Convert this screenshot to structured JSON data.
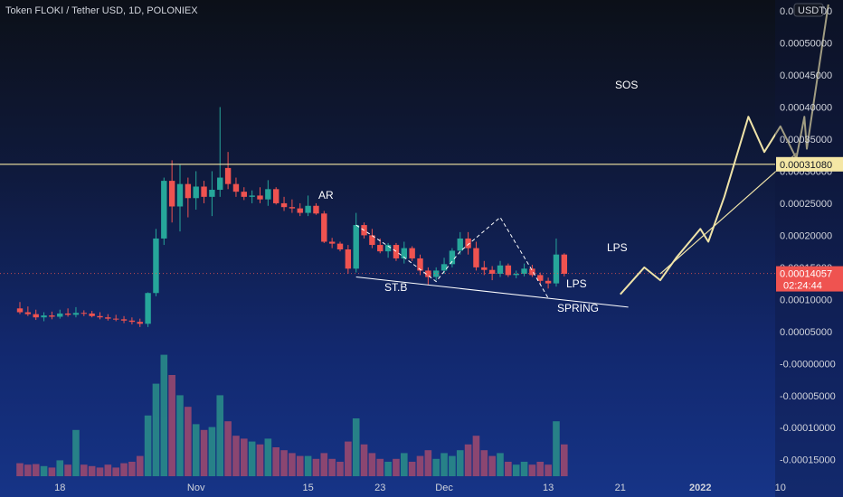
{
  "header": {
    "title": "Token FLOKI / Tether USD, 1D, POLONIEX"
  },
  "price_axis": {
    "currency_badge": "USDT",
    "ticks": [
      "0.00055000",
      "0.00050000",
      "0.00045000",
      "0.00040000",
      "0.00035000",
      "0.00030000",
      "0.00025000",
      "0.00020000",
      "0.00015000",
      "0.00010000",
      "0.00005000",
      "-0.00000000",
      "-0.00005000",
      "-0.00010000",
      "-0.00015000"
    ],
    "horizontal_line_label": "0.00031080",
    "last_price_label": "0.00014057",
    "countdown_label": "02:24:44"
  },
  "time_axis": {
    "ticks": [
      "18",
      "Nov",
      "15",
      "23",
      "Dec",
      "13",
      "21",
      "2022",
      "10"
    ]
  },
  "annotations": {
    "ar": "AR",
    "stb": "ST.B",
    "spring": "SPRING",
    "lps1": "LPS",
    "lps2": "LPS",
    "sos": "SOS"
  },
  "colors": {
    "up": "#26a69a",
    "down": "#ef5350",
    "hline": "#f5e7a5",
    "projection": "#efe3a8",
    "last_price_bg": "#ef5350"
  },
  "chart_data": {
    "type": "candlestick",
    "title": "Token FLOKI / Tether USD, 1D, POLONIEX",
    "y_range": [
      -0.00018,
      0.00055
    ],
    "candles": [
      {
        "o": 8.6e-05,
        "h": 9.6e-05,
        "l": 7.7e-05,
        "c": 8e-05,
        "v": 0.45
      },
      {
        "o": 8e-05,
        "h": 8.9e-05,
        "l": 7.4e-05,
        "c": 7.7e-05,
        "v": 0.4
      },
      {
        "o": 7.7e-05,
        "h": 8.4e-05,
        "l": 6.8e-05,
        "c": 7.2e-05,
        "v": 0.42
      },
      {
        "o": 7.2e-05,
        "h": 8e-05,
        "l": 6.6e-05,
        "c": 7.5e-05,
        "v": 0.35
      },
      {
        "o": 7.5e-05,
        "h": 8.1e-05,
        "l": 6.9e-05,
        "c": 7.3e-05,
        "v": 0.3
      },
      {
        "o": 7.3e-05,
        "h": 8.4e-05,
        "l": 7e-05,
        "c": 7.8e-05,
        "v": 0.55
      },
      {
        "o": 7.8e-05,
        "h": 8.6e-05,
        "l": 7.3e-05,
        "c": 7.6e-05,
        "v": 0.4
      },
      {
        "o": 7.6e-05,
        "h": 8.8e-05,
        "l": 7.2e-05,
        "c": 7.9e-05,
        "v": 1.6
      },
      {
        "o": 7.9e-05,
        "h": 8.3e-05,
        "l": 7.4e-05,
        "c": 7.8e-05,
        "v": 0.4
      },
      {
        "o": 7.8e-05,
        "h": 8.2e-05,
        "l": 7.2e-05,
        "c": 7.4e-05,
        "v": 0.35
      },
      {
        "o": 7.4e-05,
        "h": 8e-05,
        "l": 6.9e-05,
        "c": 7.2e-05,
        "v": 0.3
      },
      {
        "o": 7.2e-05,
        "h": 7.7e-05,
        "l": 6.7e-05,
        "c": 7e-05,
        "v": 0.4
      },
      {
        "o": 7e-05,
        "h": 7.6e-05,
        "l": 6.6e-05,
        "c": 6.9e-05,
        "v": 0.3
      },
      {
        "o": 6.9e-05,
        "h": 7.4e-05,
        "l": 6.3e-05,
        "c": 6.7e-05,
        "v": 0.45
      },
      {
        "o": 6.7e-05,
        "h": 7.2e-05,
        "l": 6.1e-05,
        "c": 6.5e-05,
        "v": 0.5
      },
      {
        "o": 6.5e-05,
        "h": 7e-05,
        "l": 5.7e-05,
        "c": 6.2e-05,
        "v": 0.7
      },
      {
        "o": 6.2e-05,
        "h": 0.000111,
        "l": 5.7e-05,
        "c": 0.00011,
        "v": 2.1
      },
      {
        "o": 0.00011,
        "h": 0.00021,
        "l": 0.000105,
        "c": 0.000195,
        "v": 3.2
      },
      {
        "o": 0.000195,
        "h": 0.00029,
        "l": 0.000185,
        "c": 0.000285,
        "v": 4.2
      },
      {
        "o": 0.000285,
        "h": 0.000317,
        "l": 0.00022,
        "c": 0.000245,
        "v": 3.5
      },
      {
        "o": 0.000245,
        "h": 0.00031,
        "l": 0.000206,
        "c": 0.00028,
        "v": 2.8
      },
      {
        "o": 0.00028,
        "h": 0.00029,
        "l": 0.000228,
        "c": 0.000258,
        "v": 2.4
      },
      {
        "o": 0.000258,
        "h": 0.0003,
        "l": 0.00024,
        "c": 0.000276,
        "v": 1.8
      },
      {
        "o": 0.000276,
        "h": 0.000285,
        "l": 0.00025,
        "c": 0.00026,
        "v": 1.6
      },
      {
        "o": 0.00026,
        "h": 0.0003,
        "l": 0.00023,
        "c": 0.000271,
        "v": 1.7
      },
      {
        "o": 0.000271,
        "h": 0.0004,
        "l": 0.00026,
        "c": 0.00029,
        "v": 2.8
      },
      {
        "o": 0.000305,
        "h": 0.00033,
        "l": 0.000272,
        "c": 0.00028,
        "v": 1.9
      },
      {
        "o": 0.00028,
        "h": 0.00029,
        "l": 0.00026,
        "c": 0.000268,
        "v": 1.4
      },
      {
        "o": 0.000268,
        "h": 0.000275,
        "l": 0.000255,
        "c": 0.00026,
        "v": 1.3
      },
      {
        "o": 0.00026,
        "h": 0.00027,
        "l": 0.00025,
        "c": 0.000262,
        "v": 1.2
      },
      {
        "o": 0.000262,
        "h": 0.000275,
        "l": 0.00025,
        "c": 0.000256,
        "v": 1.1
      },
      {
        "o": 0.000256,
        "h": 0.000286,
        "l": 0.000246,
        "c": 0.000272,
        "v": 1.3
      },
      {
        "o": 0.000272,
        "h": 0.000275,
        "l": 0.000248,
        "c": 0.00025,
        "v": 1.0
      },
      {
        "o": 0.00025,
        "h": 0.00026,
        "l": 0.000238,
        "c": 0.000244,
        "v": 0.9
      },
      {
        "o": 0.000244,
        "h": 0.000256,
        "l": 0.000235,
        "c": 0.000242,
        "v": 0.8
      },
      {
        "o": 0.000242,
        "h": 0.00025,
        "l": 0.00023,
        "c": 0.000235,
        "v": 0.7
      },
      {
        "o": 0.000235,
        "h": 0.000262,
        "l": 0.00023,
        "c": 0.000246,
        "v": 0.7
      },
      {
        "o": 0.000246,
        "h": 0.00025,
        "l": 0.000232,
        "c": 0.000234,
        "v": 0.6
      },
      {
        "o": 0.000234,
        "h": 0.000238,
        "l": 0.000188,
        "c": 0.00019,
        "v": 0.8
      },
      {
        "o": 0.00019,
        "h": 0.000196,
        "l": 0.00018,
        "c": 0.000187,
        "v": 0.6
      },
      {
        "o": 0.000187,
        "h": 0.00019,
        "l": 0.000175,
        "c": 0.000178,
        "v": 0.5
      },
      {
        "o": 0.000178,
        "h": 0.000185,
        "l": 0.00014,
        "c": 0.000148,
        "v": 1.2
      },
      {
        "o": 0.000148,
        "h": 0.000235,
        "l": 0.000142,
        "c": 0.000216,
        "v": 2.0
      },
      {
        "o": 0.000216,
        "h": 0.00022,
        "l": 0.000195,
        "c": 0.0002,
        "v": 1.1
      },
      {
        "o": 0.0002,
        "h": 0.00021,
        "l": 0.00018,
        "c": 0.000185,
        "v": 0.8
      },
      {
        "o": 0.000185,
        "h": 0.000195,
        "l": 0.000172,
        "c": 0.000175,
        "v": 0.6
      },
      {
        "o": 0.000175,
        "h": 0.000188,
        "l": 0.000165,
        "c": 0.000185,
        "v": 0.5
      },
      {
        "o": 0.000185,
        "h": 0.000188,
        "l": 0.00016,
        "c": 0.000164,
        "v": 0.6
      },
      {
        "o": 0.000164,
        "h": 0.00019,
        "l": 0.000156,
        "c": 0.00018,
        "v": 0.8
      },
      {
        "o": 0.00018,
        "h": 0.000183,
        "l": 0.00016,
        "c": 0.000164,
        "v": 0.5
      },
      {
        "o": 0.000164,
        "h": 0.00017,
        "l": 0.000138,
        "c": 0.000145,
        "v": 0.7
      },
      {
        "o": 0.000145,
        "h": 0.00015,
        "l": 0.000122,
        "c": 0.000135,
        "v": 0.9
      },
      {
        "o": 0.000135,
        "h": 0.00015,
        "l": 0.00013,
        "c": 0.000145,
        "v": 0.6
      },
      {
        "o": 0.000145,
        "h": 0.000165,
        "l": 0.00014,
        "c": 0.000155,
        "v": 0.8
      },
      {
        "o": 0.000155,
        "h": 0.00018,
        "l": 0.00015,
        "c": 0.000176,
        "v": 0.7
      },
      {
        "o": 0.000176,
        "h": 0.000205,
        "l": 0.00017,
        "c": 0.000195,
        "v": 0.9
      },
      {
        "o": 0.000195,
        "h": 0.000205,
        "l": 0.00017,
        "c": 0.00018,
        "v": 1.1
      },
      {
        "o": 0.00018,
        "h": 0.00019,
        "l": 0.000145,
        "c": 0.00015,
        "v": 1.4
      },
      {
        "o": 0.00015,
        "h": 0.00016,
        "l": 0.000138,
        "c": 0.000146,
        "v": 0.9
      },
      {
        "o": 0.000146,
        "h": 0.000152,
        "l": 0.00013,
        "c": 0.00014,
        "v": 0.7
      },
      {
        "o": 0.00014,
        "h": 0.00016,
        "l": 0.000135,
        "c": 0.000153,
        "v": 0.8
      },
      {
        "o": 0.000153,
        "h": 0.000156,
        "l": 0.000135,
        "c": 0.000138,
        "v": 0.5
      },
      {
        "o": 0.000138,
        "h": 0.000145,
        "l": 0.000133,
        "c": 0.00014,
        "v": 0.4
      },
      {
        "o": 0.00014,
        "h": 0.000156,
        "l": 0.000136,
        "c": 0.000148,
        "v": 0.5
      },
      {
        "o": 0.000148,
        "h": 0.000154,
        "l": 0.000135,
        "c": 0.000138,
        "v": 0.4
      },
      {
        "o": 0.000138,
        "h": 0.000142,
        "l": 0.000123,
        "c": 0.000129,
        "v": 0.5
      },
      {
        "o": 0.000129,
        "h": 0.000134,
        "l": 0.000117,
        "c": 0.000125,
        "v": 0.4
      },
      {
        "o": 0.000125,
        "h": 0.000195,
        "l": 0.00012,
        "c": 0.00017,
        "v": 1.9
      },
      {
        "o": 0.00017,
        "h": 0.000172,
        "l": 0.000136,
        "c": 0.00014,
        "v": 1.1
      }
    ],
    "horizontal_line": 0.0003108,
    "last_price": 0.00014057,
    "dashed_path": [
      [
        42,
        0.000216
      ],
      [
        47,
        0.000175
      ],
      [
        52,
        0.000128
      ],
      [
        55,
        0.000175
      ],
      [
        60,
        0.000228
      ],
      [
        64,
        0.000145
      ],
      [
        66,
        0.000102
      ]
    ],
    "trend_line": [
      [
        42,
        0.000135
      ],
      [
        76,
        8.8e-05
      ]
    ],
    "projection_path": [
      [
        75,
        0.000108
      ],
      [
        78,
        0.00015
      ],
      [
        80,
        0.00013
      ],
      [
        82,
        0.000165
      ],
      [
        85,
        0.00021
      ],
      [
        86,
        0.00019
      ],
      [
        88,
        0.00026
      ],
      [
        91,
        0.000385
      ],
      [
        93,
        0.00033
      ],
      [
        95,
        0.00037
      ],
      [
        97,
        0.00032
      ],
      [
        98,
        0.000385
      ],
      [
        98.3,
        0.000335
      ],
      [
        101,
        0.00056
      ]
    ],
    "projection_line2": [
      [
        80,
        0.00014
      ],
      [
        97,
        0.000328
      ]
    ],
    "x_ticks": [
      {
        "label": "18",
        "i": 5
      },
      {
        "label": "Nov",
        "i": 22
      },
      {
        "label": "15",
        "i": 36
      },
      {
        "label": "23",
        "i": 45
      },
      {
        "label": "Dec",
        "i": 53
      },
      {
        "label": "13",
        "i": 66
      },
      {
        "label": "21",
        "i": 75
      },
      {
        "label": "2022",
        "i": 85
      },
      {
        "label": "10",
        "i": 95
      }
    ]
  }
}
